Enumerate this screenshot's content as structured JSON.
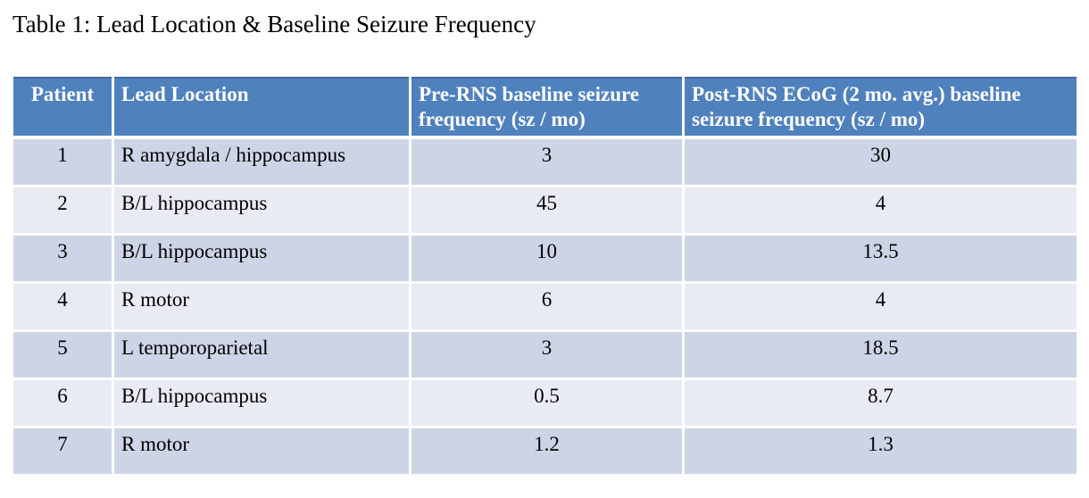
{
  "title": "Table 1: Lead Location & Baseline Seizure Frequency",
  "table": {
    "columns": [
      {
        "id": "patient",
        "label": "Patient"
      },
      {
        "id": "lead",
        "label": "Lead Location"
      },
      {
        "id": "pre",
        "label": "Pre-RNS baseline seizure frequency (sz / mo)"
      },
      {
        "id": "post",
        "label": "Post-RNS ECoG (2 mo. avg.) baseline seizure frequency (sz / mo)"
      }
    ],
    "rows": [
      {
        "patient": "1",
        "lead": "R amygdala / hippocampus",
        "pre": "3",
        "post": "30"
      },
      {
        "patient": "2",
        "lead": "B/L hippocampus",
        "pre": "45",
        "post": "4"
      },
      {
        "patient": "3",
        "lead": "B/L hippocampus",
        "pre": "10",
        "post": "13.5"
      },
      {
        "patient": "4",
        "lead": "R motor",
        "pre": "6",
        "post": "4"
      },
      {
        "patient": "5",
        "lead": "L temporoparietal",
        "pre": "3",
        "post": "18.5"
      },
      {
        "patient": "6",
        "lead": "B/L hippocampus",
        "pre": "0.5",
        "post": "8.7"
      },
      {
        "patient": "7",
        "lead": "R motor",
        "pre": "1.2",
        "post": "1.3"
      }
    ],
    "colors": {
      "header_bg": "#4f81bd",
      "header_text": "#ffffff",
      "header_top_border": "#44699d",
      "row_band_dark": "#cdd4e6",
      "row_band_light": "#e9ebf4",
      "divider": "#ffffff",
      "body_text": "#000000"
    }
  },
  "chart_data": {
    "type": "table",
    "title": "Table 1: Lead Location & Baseline Seizure Frequency",
    "columns": [
      "Patient",
      "Lead Location",
      "Pre-RNS baseline seizure frequency (sz / mo)",
      "Post-RNS ECoG (2 mo. avg.) baseline seizure frequency (sz / mo)"
    ],
    "rows": [
      [
        "1",
        "R amygdala / hippocampus",
        3,
        30
      ],
      [
        "2",
        "B/L hippocampus",
        45,
        4
      ],
      [
        "3",
        "B/L hippocampus",
        10,
        13.5
      ],
      [
        "4",
        "R motor",
        6,
        4
      ],
      [
        "5",
        "L temporoparietal",
        3,
        18.5
      ],
      [
        "6",
        "B/L hippocampus",
        0.5,
        8.7
      ],
      [
        "7",
        "R motor",
        1.2,
        1.3
      ]
    ]
  }
}
